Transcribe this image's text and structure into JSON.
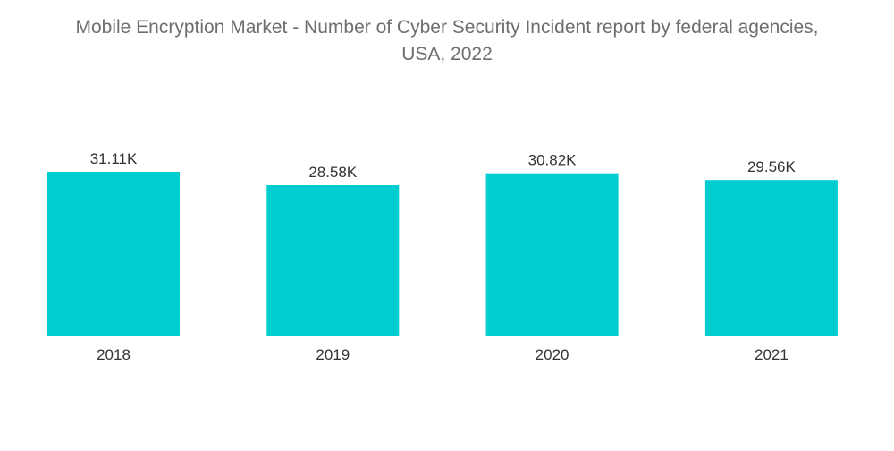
{
  "chart_data": {
    "type": "bar",
    "title_line1": "Mobile Encryption Market - Number of Cyber Security Incident report by federal agencies,",
    "title_line2": "USA, 2022",
    "categories": [
      "2018",
      "2019",
      "2020",
      "2021"
    ],
    "values": [
      31.11,
      28.58,
      30.82,
      29.56
    ],
    "value_labels": [
      "31.11K",
      "28.58K",
      "30.82K",
      "29.56K"
    ],
    "unit": "K",
    "xlabel": "",
    "ylabel": "",
    "ylim": [
      0,
      31.11
    ],
    "grid": false,
    "legend": "none",
    "bar_color": "#00CDD0"
  }
}
